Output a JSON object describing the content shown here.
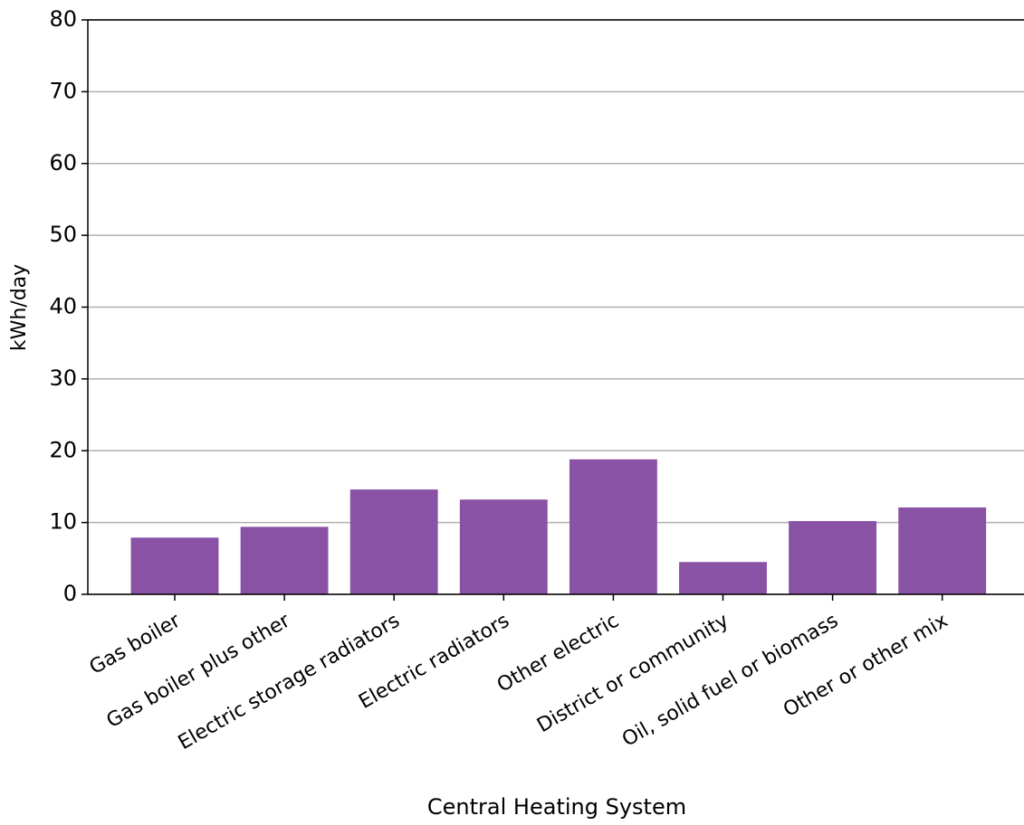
{
  "chart_data": {
    "type": "bar",
    "x_label": "Central Heating System",
    "y_label": "kWh/day",
    "categories": [
      "Gas boiler",
      "Gas boiler plus other",
      "Electric storage radiators",
      "Electric radiators",
      "Other electric",
      "District or community",
      "Oil, solid fuel or biomass",
      "Other or other mix"
    ],
    "values": [
      7.9,
      9.4,
      14.6,
      13.2,
      18.8,
      4.5,
      10.2,
      12.1
    ],
    "color": "#8a52a5",
    "ylim": [
      0,
      80
    ],
    "yticks": [
      0,
      10,
      20,
      30,
      40,
      50,
      60,
      70,
      80
    ],
    "grid": true
  }
}
